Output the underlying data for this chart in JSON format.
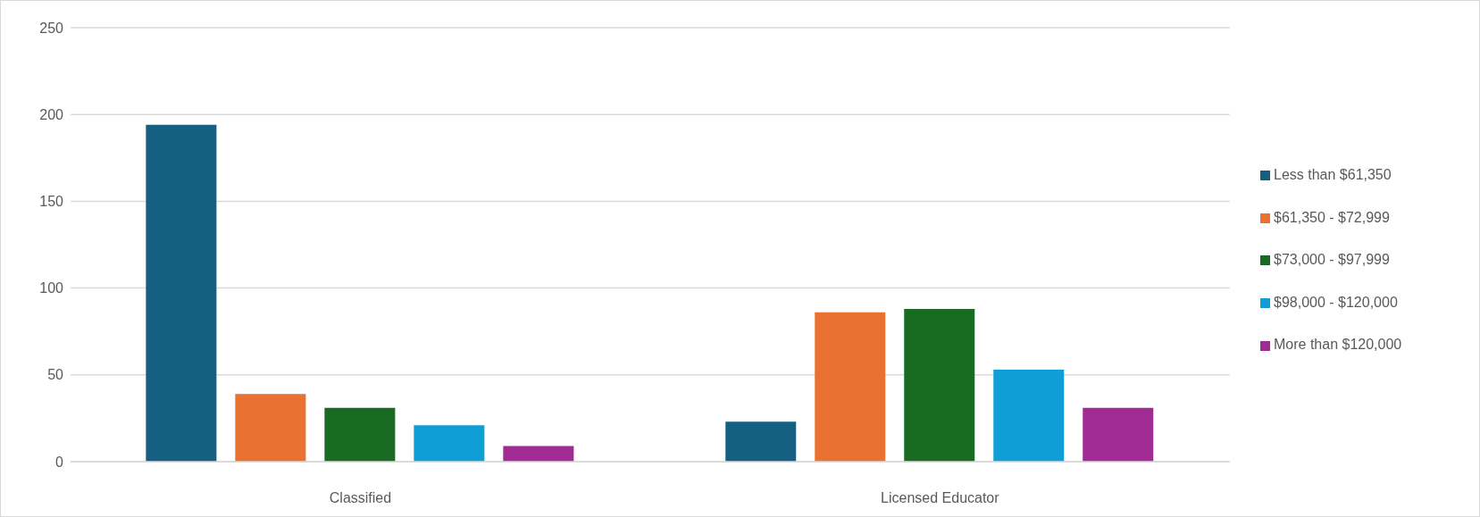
{
  "chart_data": {
    "type": "bar",
    "categories": [
      "Classified",
      "Licensed Educator"
    ],
    "series": [
      {
        "name": "Less than $61,350",
        "color": "#156082",
        "values": [
          194,
          23
        ]
      },
      {
        "name": "$61,350 - $72,999",
        "color": "#e97132",
        "values": [
          39,
          86
        ]
      },
      {
        "name": "$73,000 - $97,999",
        "color": "#196b24",
        "values": [
          31,
          88
        ]
      },
      {
        "name": "$98,000 - $120,000",
        "color": "#0f9ed5",
        "values": [
          21,
          53
        ]
      },
      {
        "name": "More than $120,000",
        "color": "#a02b93",
        "values": [
          9,
          31
        ]
      }
    ],
    "ylim": [
      0,
      250
    ],
    "yticks": [
      0,
      50,
      100,
      150,
      200,
      250
    ],
    "grid": "y",
    "legend": "right"
  }
}
